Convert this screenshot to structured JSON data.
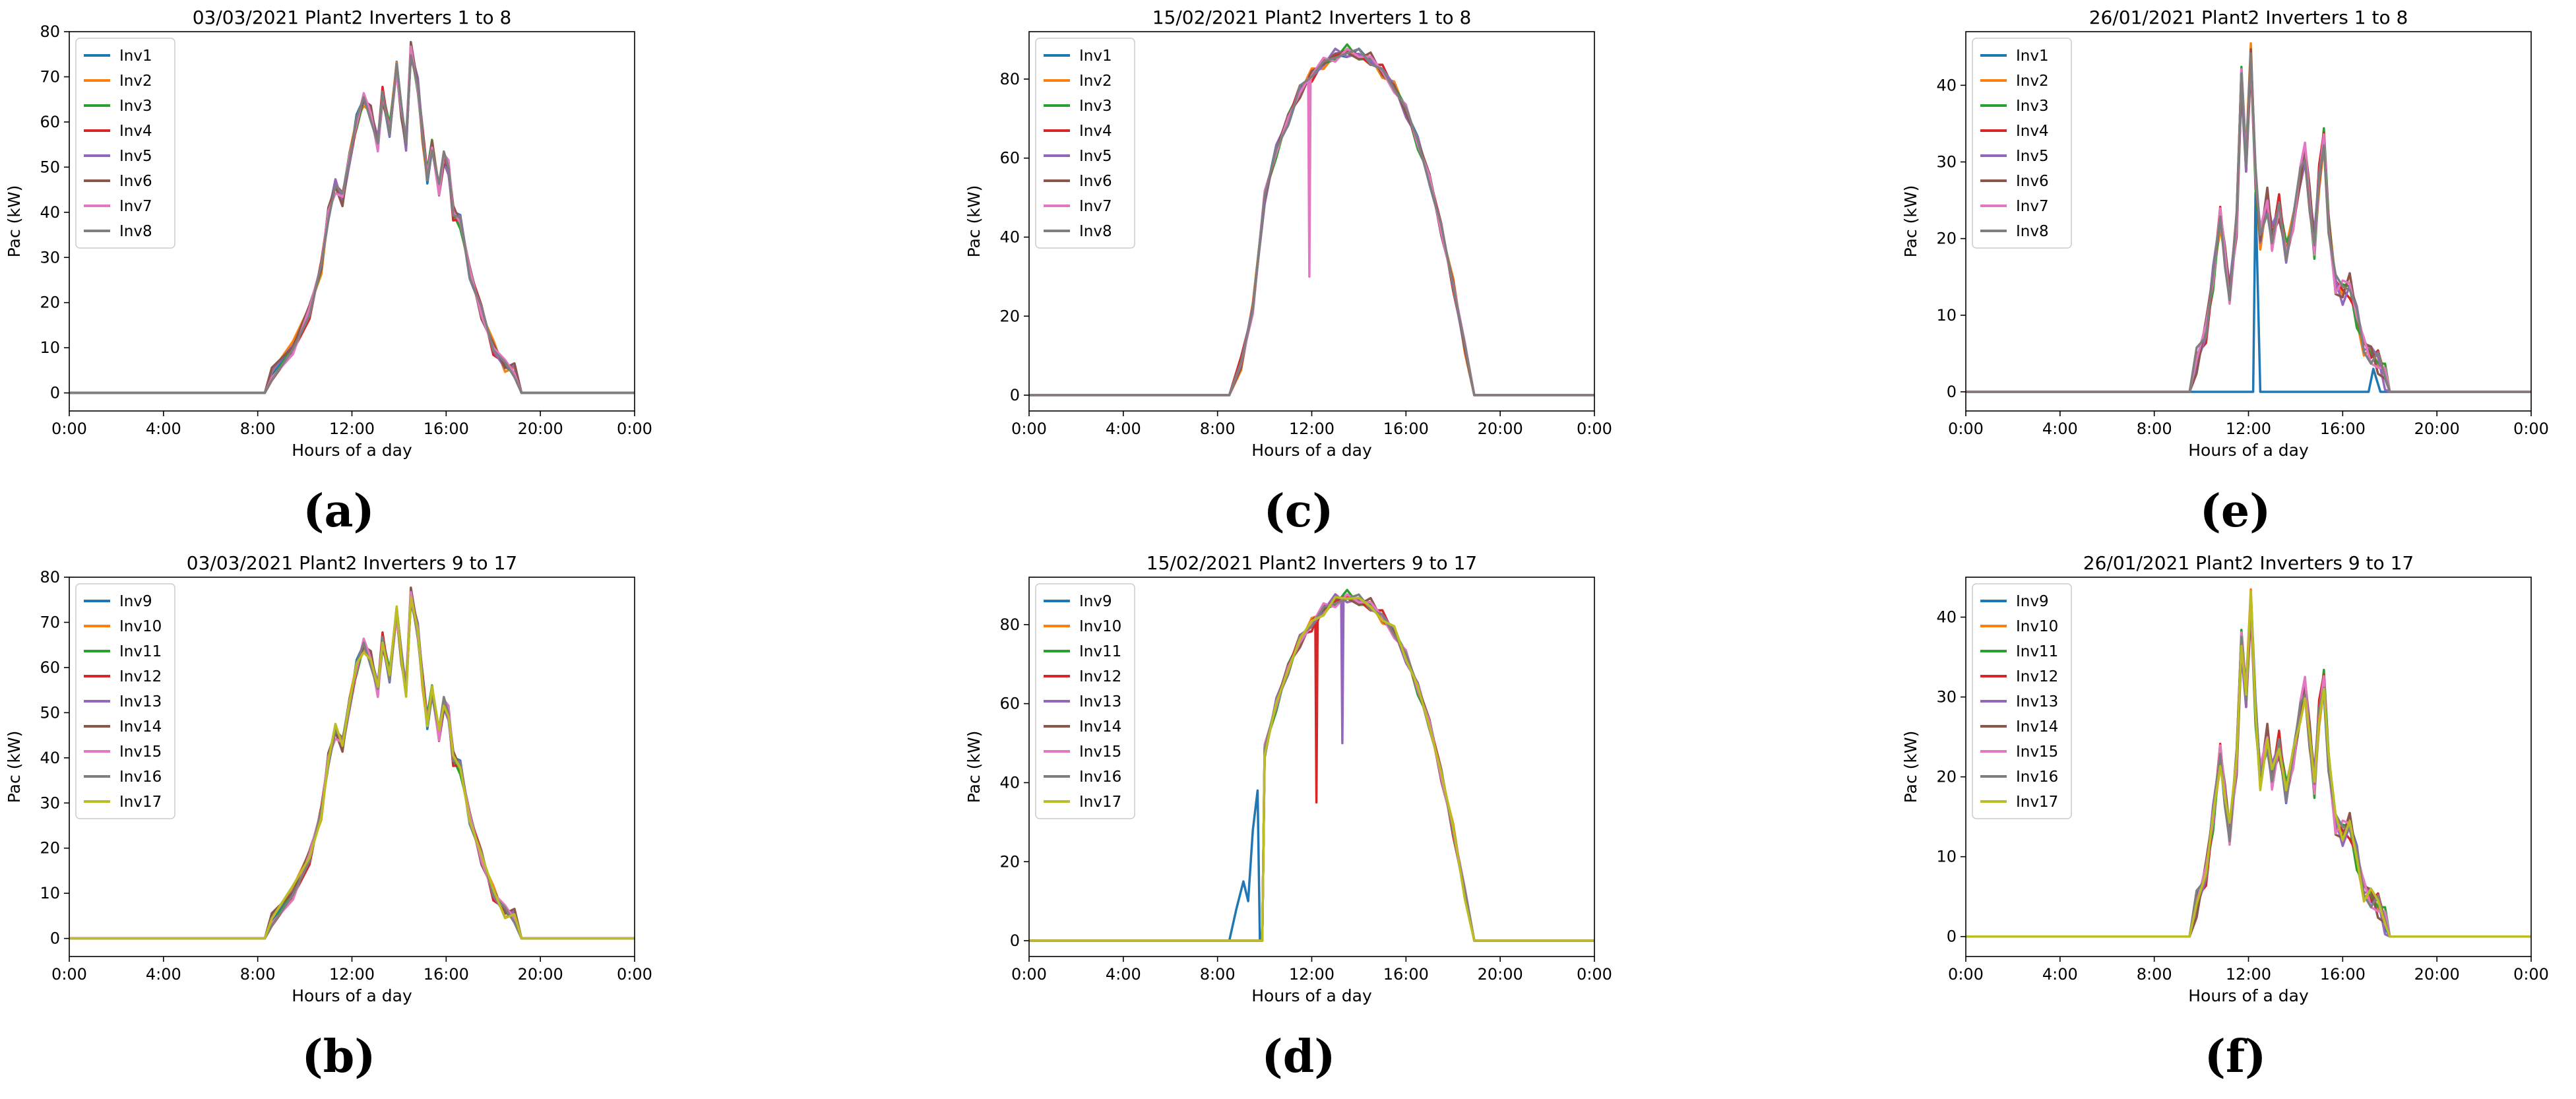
{
  "colors": [
    "#1f77b4",
    "#ff7f0e",
    "#2ca02c",
    "#d62728",
    "#9467bd",
    "#8c564b",
    "#e377c2",
    "#7f7f7f",
    "#bcbd22"
  ],
  "chart_data": [
    {
      "id": "a",
      "caption": "(a)",
      "type": "line",
      "title": "03/03/2021 Plant2 Inverters 1 to 8",
      "xlabel": "Hours of a day",
      "ylabel": "Pac (kW)",
      "xlim": [
        0,
        24
      ],
      "ylim": [
        -4,
        80
      ],
      "xticks": [
        0,
        4,
        8,
        12,
        16,
        20,
        24
      ],
      "xticklabels": [
        "0:00",
        "4:00",
        "8:00",
        "12:00",
        "16:00",
        "20:00",
        "0:00"
      ],
      "yticks": [
        0,
        10,
        20,
        30,
        40,
        50,
        60,
        70,
        80
      ],
      "legend_loc": "upper-left",
      "series": [
        {
          "name": "Inv1"
        },
        {
          "name": "Inv2"
        },
        {
          "name": "Inv3"
        },
        {
          "name": "Inv4"
        },
        {
          "name": "Inv5"
        },
        {
          "name": "Inv6"
        },
        {
          "name": "Inv7"
        },
        {
          "name": "Inv8"
        }
      ],
      "profile": [
        [
          0,
          0
        ],
        [
          8.3,
          0
        ],
        [
          8.6,
          4
        ],
        [
          9.5,
          10
        ],
        [
          10.2,
          18
        ],
        [
          10.7,
          28
        ],
        [
          11,
          40
        ],
        [
          11.3,
          46
        ],
        [
          11.6,
          43
        ],
        [
          11.9,
          52
        ],
        [
          12.2,
          60
        ],
        [
          12.5,
          65
        ],
        [
          12.8,
          62
        ],
        [
          13.1,
          55
        ],
        [
          13.3,
          66
        ],
        [
          13.6,
          58
        ],
        [
          13.9,
          72
        ],
        [
          14.1,
          62
        ],
        [
          14.3,
          55
        ],
        [
          14.5,
          76
        ],
        [
          14.8,
          68
        ],
        [
          15,
          57
        ],
        [
          15.2,
          48
        ],
        [
          15.4,
          55
        ],
        [
          15.7,
          45
        ],
        [
          15.9,
          52
        ],
        [
          16.1,
          50
        ],
        [
          16.3,
          40
        ],
        [
          16.6,
          38
        ],
        [
          17,
          27
        ],
        [
          17.5,
          18
        ],
        [
          18,
          10
        ],
        [
          18.5,
          6
        ],
        [
          18.9,
          5
        ],
        [
          19.2,
          0
        ],
        [
          24,
          0
        ]
      ]
    },
    {
      "id": "c",
      "caption": "(c)",
      "type": "line",
      "title": "15/02/2021 Plant2 Inverters 1 to 8",
      "xlabel": "Hours of a day",
      "ylabel": "Pac (kW)",
      "xlim": [
        0,
        24
      ],
      "ylim": [
        -4,
        92
      ],
      "xticks": [
        0,
        4,
        8,
        12,
        16,
        20,
        24
      ],
      "xticklabels": [
        "0:00",
        "4:00",
        "8:00",
        "12:00",
        "16:00",
        "20:00",
        "0:00"
      ],
      "yticks": [
        0,
        20,
        40,
        60,
        80
      ],
      "legend_loc": "upper-left",
      "series": [
        {
          "name": "Inv1"
        },
        {
          "name": "Inv2"
        },
        {
          "name": "Inv3"
        },
        {
          "name": "Inv4"
        },
        {
          "name": "Inv5"
        },
        {
          "name": "Inv6"
        },
        {
          "name": "Inv7"
        },
        {
          "name": "Inv8"
        }
      ],
      "profile": [
        [
          0,
          0
        ],
        [
          8.5,
          0
        ],
        [
          9,
          8
        ],
        [
          9.5,
          22
        ],
        [
          10,
          50
        ],
        [
          10.5,
          62
        ],
        [
          11,
          70
        ],
        [
          11.5,
          77
        ],
        [
          12,
          81
        ],
        [
          12.5,
          84
        ],
        [
          13,
          86
        ],
        [
          13.5,
          87
        ],
        [
          14,
          86
        ],
        [
          14.5,
          85
        ],
        [
          15,
          82
        ],
        [
          15.5,
          78
        ],
        [
          16,
          72
        ],
        [
          16.5,
          64
        ],
        [
          17,
          55
        ],
        [
          17.5,
          42
        ],
        [
          18,
          28
        ],
        [
          18.5,
          12
        ],
        [
          18.9,
          0
        ],
        [
          24,
          0
        ]
      ],
      "spikes": [
        {
          "series": 6,
          "at": 11.9,
          "to": 30
        }
      ]
    },
    {
      "id": "e",
      "caption": "(e)",
      "type": "line",
      "title": "26/01/2021 Plant2 Inverters 1 to 8",
      "xlabel": "Hours of a day",
      "ylabel": "Pac (kW)",
      "xlim": [
        0,
        24
      ],
      "ylim": [
        -2.5,
        47
      ],
      "xticks": [
        0,
        4,
        8,
        12,
        16,
        20,
        24
      ],
      "xticklabels": [
        "0:00",
        "4:00",
        "8:00",
        "12:00",
        "16:00",
        "20:00",
        "0:00"
      ],
      "yticks": [
        0,
        10,
        20,
        30,
        40
      ],
      "legend_loc": "upper-left",
      "series": [
        {
          "name": "Inv1"
        },
        {
          "name": "Inv2"
        },
        {
          "name": "Inv3"
        },
        {
          "name": "Inv4"
        },
        {
          "name": "Inv5"
        },
        {
          "name": "Inv6"
        },
        {
          "name": "Inv7"
        },
        {
          "name": "Inv8"
        }
      ],
      "profile": [
        [
          0,
          0
        ],
        [
          9.5,
          0
        ],
        [
          9.8,
          4
        ],
        [
          10.2,
          8
        ],
        [
          10.5,
          15
        ],
        [
          10.8,
          23
        ],
        [
          11,
          18
        ],
        [
          11.2,
          13
        ],
        [
          11.5,
          22
        ],
        [
          11.7,
          41
        ],
        [
          11.9,
          30
        ],
        [
          12.1,
          44
        ],
        [
          12.3,
          28
        ],
        [
          12.5,
          20
        ],
        [
          12.8,
          25
        ],
        [
          13,
          20
        ],
        [
          13.3,
          24
        ],
        [
          13.6,
          18
        ],
        [
          13.9,
          22
        ],
        [
          14.2,
          28
        ],
        [
          14.4,
          31
        ],
        [
          14.6,
          25
        ],
        [
          14.8,
          19
        ],
        [
          15,
          28
        ],
        [
          15.2,
          33
        ],
        [
          15.4,
          22
        ],
        [
          15.7,
          14
        ],
        [
          16,
          13
        ],
        [
          16.3,
          14
        ],
        [
          16.6,
          10
        ],
        [
          16.9,
          6
        ],
        [
          17.2,
          5
        ],
        [
          17.5,
          4
        ],
        [
          17.8,
          2
        ],
        [
          18,
          0
        ],
        [
          24,
          0
        ]
      ],
      "special": {
        "series": 0,
        "points": [
          [
            0,
            0
          ],
          [
            12.2,
            0
          ],
          [
            12.3,
            26
          ],
          [
            12.5,
            0
          ],
          [
            17.1,
            0
          ],
          [
            17.3,
            3
          ],
          [
            17.6,
            0
          ],
          [
            24,
            0
          ]
        ]
      }
    },
    {
      "id": "b",
      "caption": "(b)",
      "type": "line",
      "title": "03/03/2021 Plant2 Inverters 9 to 17",
      "xlabel": "Hours of a day",
      "ylabel": "Pac (kW)",
      "xlim": [
        0,
        24
      ],
      "ylim": [
        -4,
        80
      ],
      "xticks": [
        0,
        4,
        8,
        12,
        16,
        20,
        24
      ],
      "xticklabels": [
        "0:00",
        "4:00",
        "8:00",
        "12:00",
        "16:00",
        "20:00",
        "0:00"
      ],
      "yticks": [
        0,
        10,
        20,
        30,
        40,
        50,
        60,
        70,
        80
      ],
      "legend_loc": "upper-left",
      "series": [
        {
          "name": "Inv9"
        },
        {
          "name": "Inv10"
        },
        {
          "name": "Inv11"
        },
        {
          "name": "Inv12"
        },
        {
          "name": "Inv13"
        },
        {
          "name": "Inv14"
        },
        {
          "name": "Inv15"
        },
        {
          "name": "Inv16"
        },
        {
          "name": "Inv17"
        }
      ],
      "profile": [
        [
          0,
          0
        ],
        [
          8.3,
          0
        ],
        [
          8.6,
          4
        ],
        [
          9.5,
          10
        ],
        [
          10.2,
          18
        ],
        [
          10.7,
          28
        ],
        [
          11,
          40
        ],
        [
          11.3,
          46
        ],
        [
          11.6,
          43
        ],
        [
          11.9,
          52
        ],
        [
          12.2,
          60
        ],
        [
          12.5,
          65
        ],
        [
          12.8,
          62
        ],
        [
          13.1,
          55
        ],
        [
          13.3,
          66
        ],
        [
          13.6,
          58
        ],
        [
          13.9,
          72
        ],
        [
          14.1,
          62
        ],
        [
          14.3,
          55
        ],
        [
          14.5,
          76
        ],
        [
          14.8,
          68
        ],
        [
          15,
          57
        ],
        [
          15.2,
          48
        ],
        [
          15.4,
          55
        ],
        [
          15.7,
          45
        ],
        [
          15.9,
          52
        ],
        [
          16.1,
          50
        ],
        [
          16.3,
          40
        ],
        [
          16.6,
          38
        ],
        [
          17,
          27
        ],
        [
          17.5,
          18
        ],
        [
          18,
          10
        ],
        [
          18.5,
          6
        ],
        [
          18.9,
          5
        ],
        [
          19.2,
          0
        ],
        [
          24,
          0
        ]
      ]
    },
    {
      "id": "d",
      "caption": "(d)",
      "type": "line",
      "title": "15/02/2021 Plant2 Inverters 9 to 17",
      "xlabel": "Hours of a day",
      "ylabel": "Pac (kW)",
      "xlim": [
        0,
        24
      ],
      "ylim": [
        -4,
        92
      ],
      "xticks": [
        0,
        4,
        8,
        12,
        16,
        20,
        24
      ],
      "xticklabels": [
        "0:00",
        "4:00",
        "8:00",
        "12:00",
        "16:00",
        "20:00",
        "0:00"
      ],
      "yticks": [
        0,
        20,
        40,
        60,
        80
      ],
      "legend_loc": "upper-left",
      "series": [
        {
          "name": "Inv9"
        },
        {
          "name": "Inv10"
        },
        {
          "name": "Inv11"
        },
        {
          "name": "Inv12"
        },
        {
          "name": "Inv13"
        },
        {
          "name": "Inv14"
        },
        {
          "name": "Inv15"
        },
        {
          "name": "Inv16"
        },
        {
          "name": "Inv17"
        }
      ],
      "profile": [
        [
          0,
          0
        ],
        [
          9.9,
          0
        ],
        [
          10,
          48
        ],
        [
          10.5,
          60
        ],
        [
          11,
          69
        ],
        [
          11.5,
          76
        ],
        [
          12,
          80
        ],
        [
          12.5,
          84
        ],
        [
          13,
          86
        ],
        [
          13.5,
          87
        ],
        [
          14,
          86
        ],
        [
          14.5,
          85
        ],
        [
          15,
          82
        ],
        [
          15.5,
          78
        ],
        [
          16,
          72
        ],
        [
          16.5,
          64
        ],
        [
          17,
          55
        ],
        [
          17.5,
          42
        ],
        [
          18,
          28
        ],
        [
          18.5,
          12
        ],
        [
          18.9,
          0
        ],
        [
          24,
          0
        ]
      ],
      "special": {
        "series": 0,
        "points": [
          [
            0,
            0
          ],
          [
            8.5,
            0
          ],
          [
            8.8,
            8
          ],
          [
            9.1,
            15
          ],
          [
            9.3,
            10
          ],
          [
            9.5,
            28
          ],
          [
            9.7,
            38
          ],
          [
            9.8,
            0
          ],
          [
            9.9,
            0
          ],
          [
            10,
            48
          ],
          [
            10.5,
            60
          ],
          [
            11,
            69
          ],
          [
            11.5,
            76
          ],
          [
            12,
            80
          ],
          [
            12.5,
            84
          ],
          [
            13,
            86
          ],
          [
            13.5,
            87
          ],
          [
            14,
            86
          ],
          [
            14.5,
            85
          ],
          [
            15,
            82
          ],
          [
            15.5,
            78
          ],
          [
            16,
            72
          ],
          [
            16.5,
            64
          ],
          [
            17,
            55
          ],
          [
            17.5,
            42
          ],
          [
            18,
            28
          ],
          [
            18.5,
            12
          ],
          [
            18.9,
            0
          ],
          [
            24,
            0
          ]
        ]
      },
      "spikes": [
        {
          "series": 3,
          "at": 12.2,
          "to": 35
        },
        {
          "series": 4,
          "at": 13.3,
          "to": 50
        }
      ]
    },
    {
      "id": "f",
      "caption": "(f)",
      "type": "line",
      "title": "26/01/2021 Plant2 Inverters 9 to 17",
      "xlabel": "Hours of a day",
      "ylabel": "Pac (kW)",
      "xlim": [
        0,
        24
      ],
      "ylim": [
        -2.5,
        45
      ],
      "xticks": [
        0,
        4,
        8,
        12,
        16,
        20,
        24
      ],
      "xticklabels": [
        "0:00",
        "4:00",
        "8:00",
        "12:00",
        "16:00",
        "20:00",
        "0:00"
      ],
      "yticks": [
        0,
        10,
        20,
        30,
        40
      ],
      "legend_loc": "upper-left",
      "series": [
        {
          "name": "Inv9"
        },
        {
          "name": "Inv10"
        },
        {
          "name": "Inv11"
        },
        {
          "name": "Inv12"
        },
        {
          "name": "Inv13"
        },
        {
          "name": "Inv14"
        },
        {
          "name": "Inv15"
        },
        {
          "name": "Inv16"
        },
        {
          "name": "Inv17"
        }
      ],
      "profile": [
        [
          0,
          0
        ],
        [
          9.5,
          0
        ],
        [
          9.8,
          4
        ],
        [
          10.2,
          8
        ],
        [
          10.5,
          15
        ],
        [
          10.8,
          23
        ],
        [
          11,
          18
        ],
        [
          11.2,
          13
        ],
        [
          11.5,
          22
        ],
        [
          11.7,
          37
        ],
        [
          11.9,
          30
        ],
        [
          12.1,
          42
        ],
        [
          12.3,
          28
        ],
        [
          12.5,
          20
        ],
        [
          12.8,
          25
        ],
        [
          13,
          20
        ],
        [
          13.3,
          24
        ],
        [
          13.6,
          18
        ],
        [
          13.9,
          22
        ],
        [
          14.2,
          28
        ],
        [
          14.4,
          31
        ],
        [
          14.6,
          25
        ],
        [
          14.8,
          19
        ],
        [
          15,
          28
        ],
        [
          15.2,
          32
        ],
        [
          15.4,
          22
        ],
        [
          15.7,
          14
        ],
        [
          16,
          13
        ],
        [
          16.3,
          14
        ],
        [
          16.6,
          10
        ],
        [
          16.9,
          6
        ],
        [
          17.2,
          5
        ],
        [
          17.5,
          4
        ],
        [
          17.8,
          2
        ],
        [
          18,
          0
        ],
        [
          24,
          0
        ]
      ]
    }
  ]
}
